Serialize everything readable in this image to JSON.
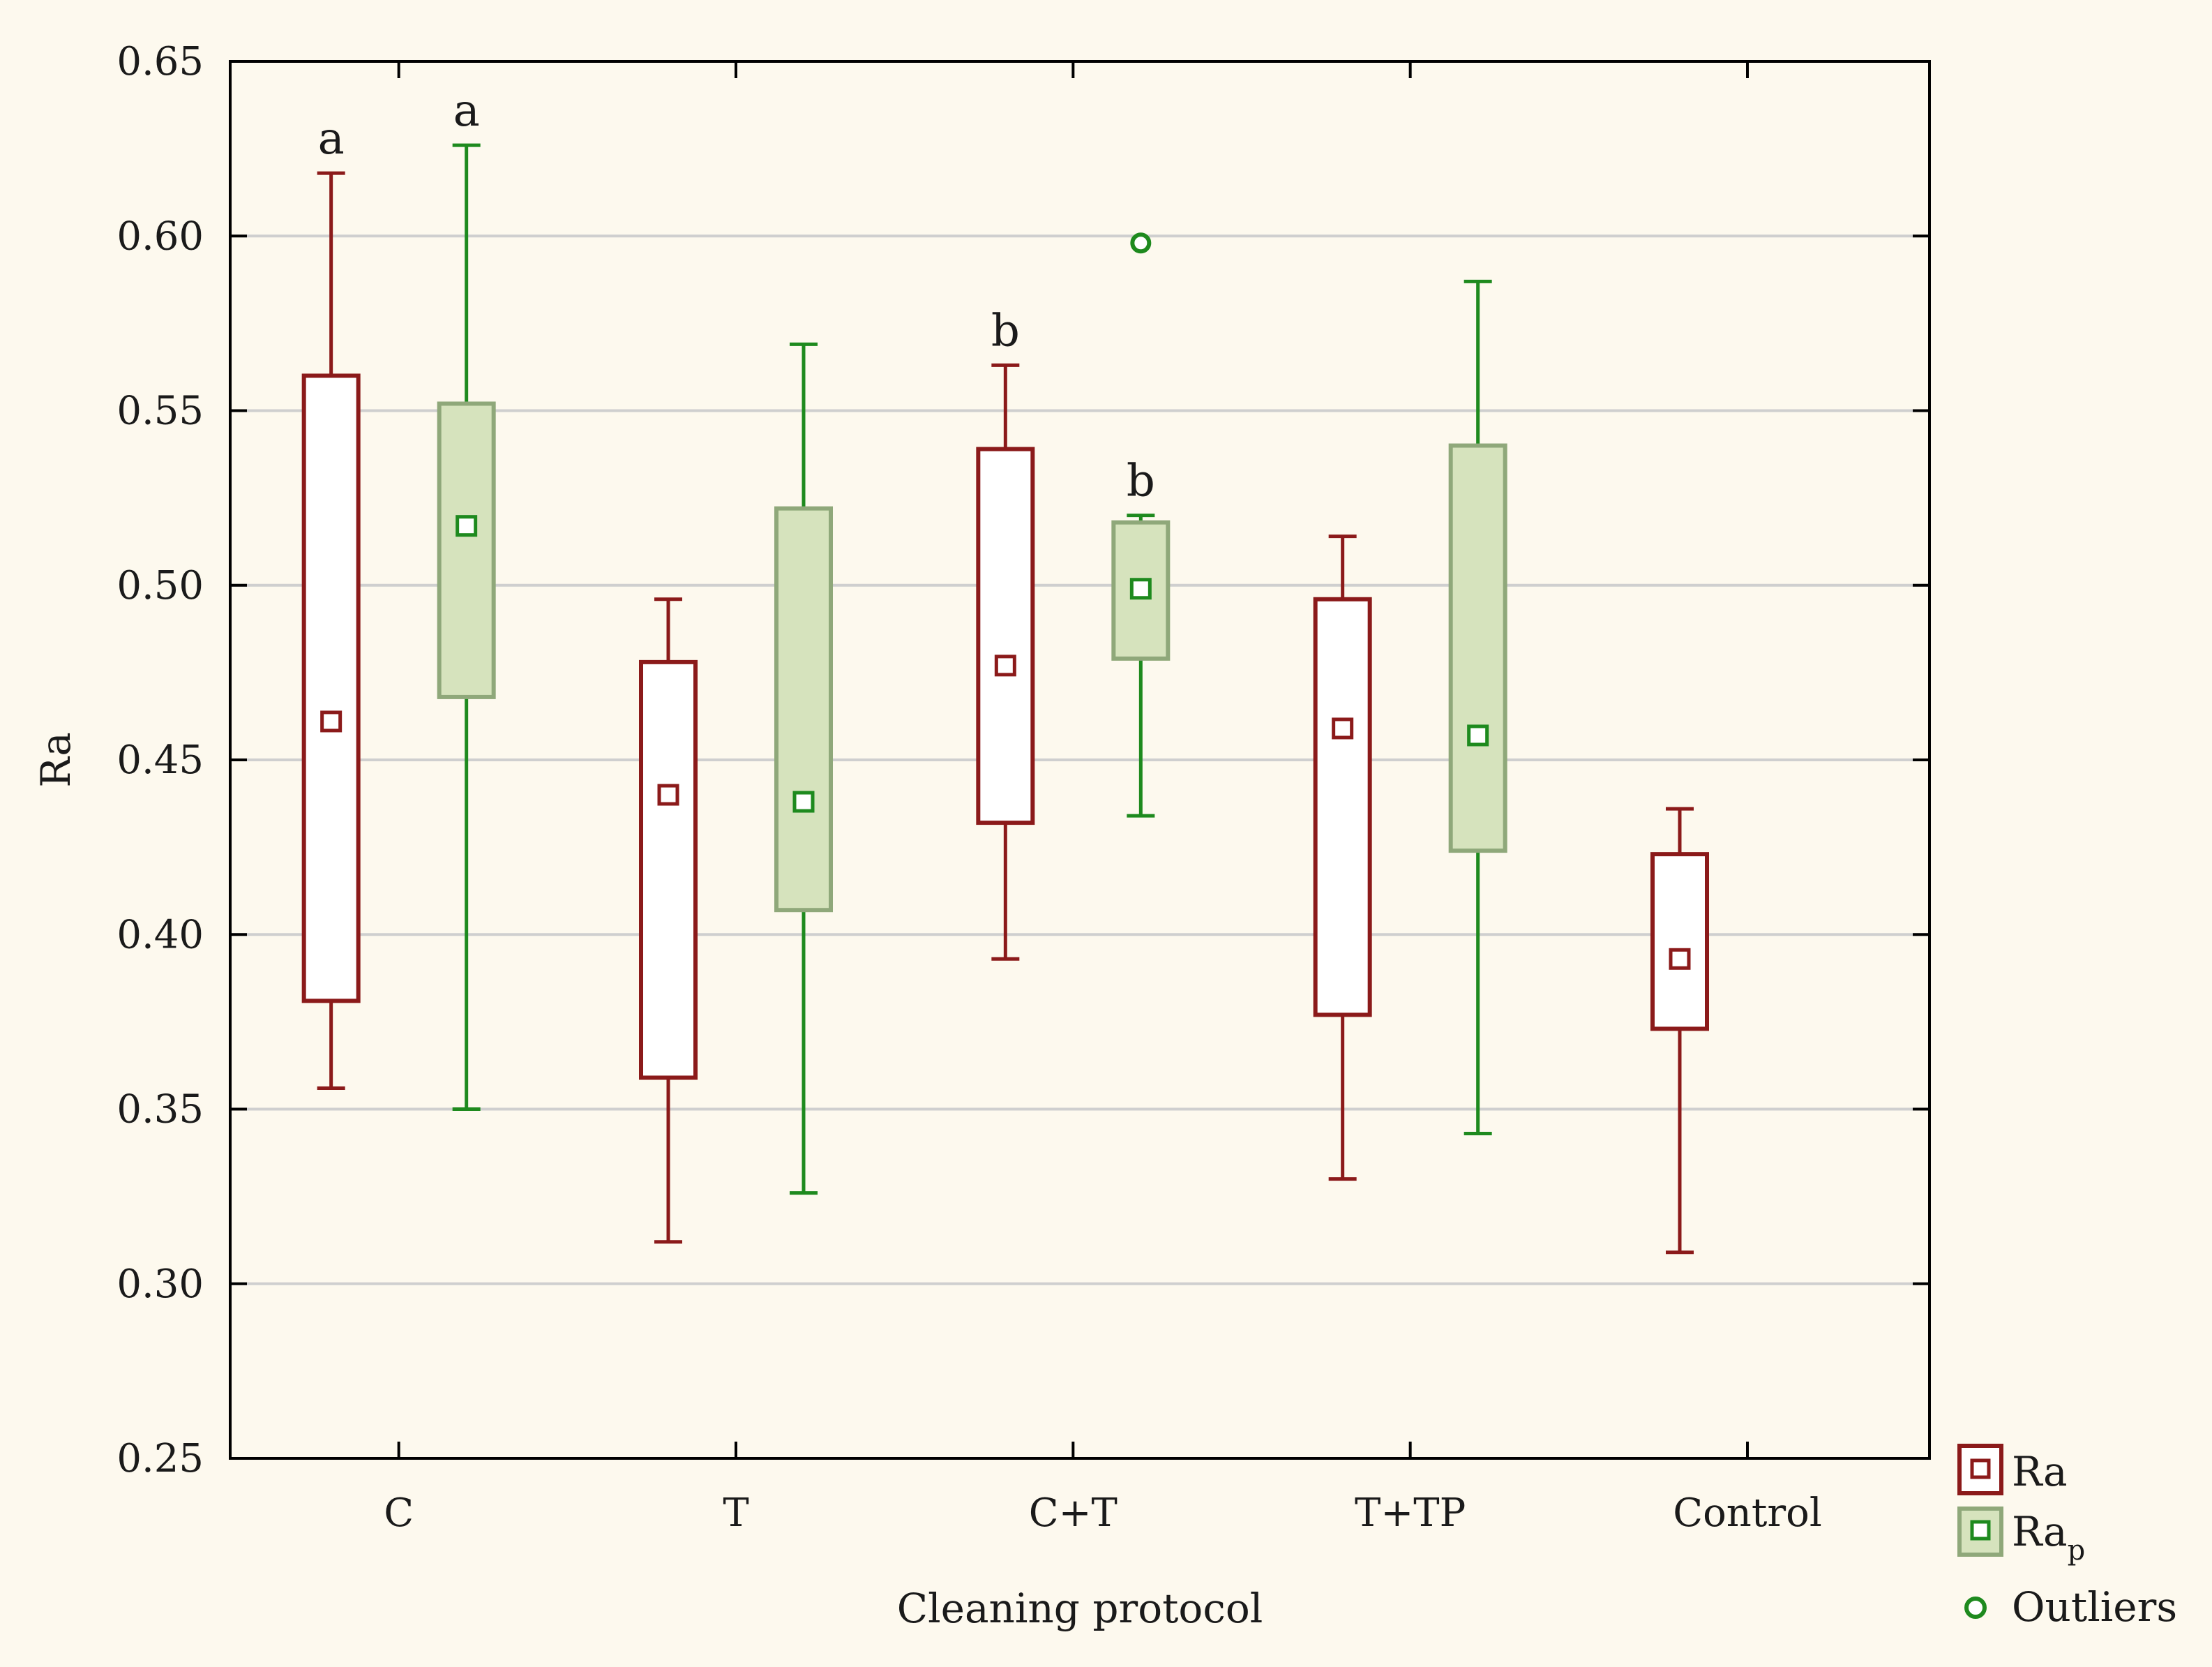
{
  "chart_data": {
    "type": "boxplot",
    "title": "",
    "xlabel": "Cleaning protocol",
    "ylabel": "Ra",
    "ylim": [
      0.25,
      0.65
    ],
    "yticks": [
      0.25,
      0.3,
      0.35,
      0.4,
      0.45,
      0.5,
      0.55,
      0.6,
      0.65
    ],
    "ytick_labels": [
      "0.25",
      "0.30",
      "0.35",
      "0.40",
      "0.45",
      "0.50",
      "0.55",
      "0.60",
      "0.65"
    ],
    "grid": true,
    "categories": [
      "C",
      "T",
      "C+T",
      "T+TP",
      "Control"
    ],
    "colors": {
      "ra_stroke": "#8b1a1a",
      "ra_fill": "#ffffff",
      "rap_stroke": "#1e8a1e",
      "rap_box_stroke": "#8fa87a",
      "rap_fill": "#d6e3bd",
      "outlier": "#1e8a1e",
      "grid": "#cfcfcf",
      "axis": "#000000"
    },
    "series": [
      {
        "name": "Ra",
        "boxes": [
          {
            "category": "C",
            "min": 0.356,
            "q1": 0.381,
            "median": 0.461,
            "q3": 0.56,
            "max": 0.618
          },
          {
            "category": "T",
            "min": 0.312,
            "q1": 0.359,
            "median": 0.44,
            "q3": 0.478,
            "max": 0.496
          },
          {
            "category": "C+T",
            "min": 0.393,
            "q1": 0.432,
            "median": 0.477,
            "q3": 0.539,
            "max": 0.563
          },
          {
            "category": "T+TP",
            "min": 0.33,
            "q1": 0.377,
            "median": 0.459,
            "q3": 0.496,
            "max": 0.514
          },
          {
            "category": "Control",
            "min": 0.309,
            "q1": 0.373,
            "median": 0.393,
            "q3": 0.423,
            "max": 0.436
          }
        ]
      },
      {
        "name": "Ra_p",
        "boxes": [
          {
            "category": "C",
            "min": 0.35,
            "q1": 0.468,
            "median": 0.517,
            "q3": 0.552,
            "max": 0.626
          },
          {
            "category": "T",
            "min": 0.326,
            "q1": 0.407,
            "median": 0.438,
            "q3": 0.522,
            "max": 0.569
          },
          {
            "category": "C+T",
            "min": 0.434,
            "q1": 0.479,
            "median": 0.499,
            "q3": 0.518,
            "max": 0.52
          },
          {
            "category": "T+TP",
            "min": 0.343,
            "q1": 0.424,
            "median": 0.457,
            "q3": 0.54,
            "max": 0.587
          }
        ]
      }
    ],
    "outliers": [
      {
        "series": "Ra_p",
        "category": "C+T",
        "value": 0.598
      }
    ],
    "annotations": [
      {
        "text": "a",
        "series": "Ra",
        "category": "C",
        "value": 0.618
      },
      {
        "text": "a",
        "series": "Ra_p",
        "category": "C",
        "value": 0.626
      },
      {
        "text": "b",
        "series": "Ra",
        "category": "C+T",
        "value": 0.563
      },
      {
        "text": "b",
        "series": "Ra_p",
        "category": "C+T",
        "value": 0.52
      }
    ],
    "legend": {
      "position": "bottom-right-outside",
      "entries": [
        {
          "label": "Ra",
          "subscript": ""
        },
        {
          "label": "Ra",
          "subscript": "p"
        },
        {
          "label": "Outliers",
          "subscript": ""
        }
      ]
    }
  }
}
